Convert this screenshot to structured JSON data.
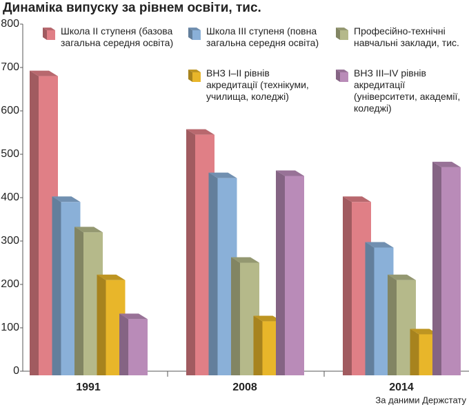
{
  "chart_data": {
    "type": "bar3d",
    "title": "Динаміка випуску за рівнем освіти, тис.",
    "source": "За даними Держстату",
    "categories": [
      "1991",
      "2008",
      "2014"
    ],
    "series": [
      {
        "name": "Школа ІІ ступеня (базова\nзагальна середня освіта)",
        "color": "#e07f86",
        "values": [
          680,
          545,
          390
        ]
      },
      {
        "name": "Школа ІІІ ступеня (повна\nзагальна середня освіта)",
        "color": "#8ab0d8",
        "values": [
          390,
          445,
          285
        ]
      },
      {
        "name": "Професійно-технічні\nнавчальні заклади, тис.",
        "color": "#b5b98a",
        "values": [
          320,
          250,
          210
        ]
      },
      {
        "name": "ВНЗ І–ІІ рівнів\nакредитації (технікуми,\nучилища, коледжі)",
        "color": "#e8b62a",
        "values": [
          210,
          115,
          85
        ]
      },
      {
        "name": "ВНЗ ІІІ–IV рівнів\nакредитації\n(університети, академії,\nколеджі)",
        "color": "#b98bb8",
        "values": [
          120,
          450,
          470
        ]
      }
    ],
    "ylim": [
      0,
      800
    ],
    "yticks": [
      0,
      100,
      200,
      300,
      400,
      500,
      600,
      700,
      800
    ]
  }
}
